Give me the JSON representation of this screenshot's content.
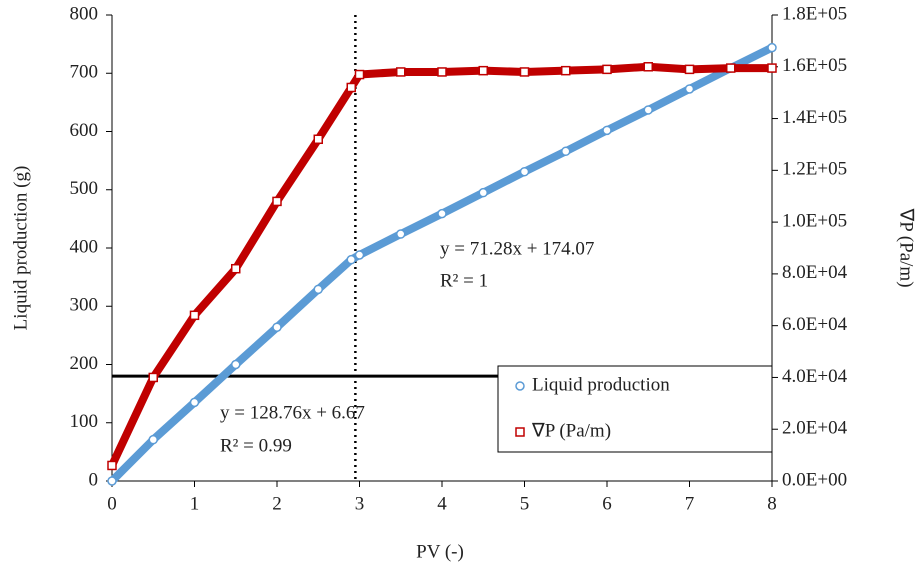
{
  "chart_data": {
    "type": "line",
    "x_label": "PV (-)",
    "y_label": "Liquid production (g)",
    "y2_label": "∇P (Pa/m)",
    "x": [
      0,
      0.5,
      1,
      1.5,
      2,
      2.5,
      2.9,
      3,
      3.5,
      4,
      4.5,
      5,
      5.5,
      6,
      6.5,
      7,
      7.5,
      8
    ],
    "series": [
      {
        "name": "Liquid production",
        "color": "#5b9bd5",
        "marker": "circle",
        "values": [
          0,
          71,
          135,
          200,
          264,
          329,
          380,
          388,
          424,
          459,
          495,
          531,
          566,
          602,
          637,
          673,
          709,
          744
        ]
      },
      {
        "name": "∇P (Pa/m)",
        "color": "#c00000",
        "marker": "square",
        "axis": "y2",
        "values": [
          6000,
          40000,
          64000,
          82000,
          108000,
          132000,
          152000,
          157000,
          158000,
          158000,
          158500,
          158000,
          158500,
          159000,
          160000,
          159000,
          159500,
          159500
        ]
      }
    ],
    "xlim": [
      0,
      8
    ],
    "xticks": [
      0,
      1,
      2,
      3,
      4,
      5,
      6,
      7,
      8
    ],
    "ylim": [
      0,
      800
    ],
    "yticks": [
      0,
      100,
      200,
      300,
      400,
      500,
      600,
      700,
      800
    ],
    "y2lim": [
      0,
      180000
    ],
    "y2ticks": [
      {
        "value": 0,
        "label": "0.0E+00"
      },
      {
        "value": 20000,
        "label": "2.0E+04"
      },
      {
        "value": 40000,
        "label": "4.0E+04"
      },
      {
        "value": 60000,
        "label": "6.0E+04"
      },
      {
        "value": 80000,
        "label": "8.0E+04"
      },
      {
        "value": 100000,
        "label": "1.0E+05"
      },
      {
        "value": 120000,
        "label": "1.2E+05"
      },
      {
        "value": 140000,
        "label": "1.4E+05"
      },
      {
        "value": 160000,
        "label": "1.6E+05"
      },
      {
        "value": 180000,
        "label": "1.8E+05"
      }
    ],
    "reference_lines": {
      "y": 180,
      "x": 2.95
    },
    "annotations": [
      "y = 71.28x + 174.07",
      "R² = 1",
      "y = 128.76x + 6.67",
      "R² = 0.99"
    ],
    "legend": "lower right"
  }
}
